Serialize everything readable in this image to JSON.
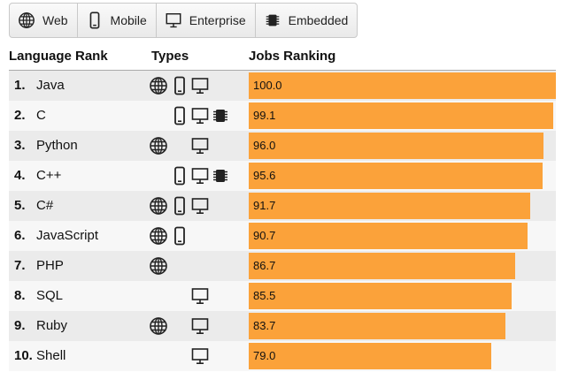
{
  "filters": [
    {
      "icon": "globe-icon",
      "label": "Web"
    },
    {
      "icon": "mobile-icon",
      "label": "Mobile"
    },
    {
      "icon": "monitor-icon",
      "label": "Enterprise"
    },
    {
      "icon": "chip-icon",
      "label": "Embedded"
    }
  ],
  "headers": {
    "language_rank": "Language Rank",
    "types": "Types",
    "jobs_ranking": "Jobs Ranking"
  },
  "colors": {
    "bar": "#fba23a",
    "row_odd": "#ebebeb",
    "row_even": "#f7f7f7"
  },
  "rows": [
    {
      "rank": "1.",
      "name": "Java",
      "web": true,
      "mobile": true,
      "enterprise": true,
      "embedded": false,
      "score": 100.0,
      "score_label": "100.0"
    },
    {
      "rank": "2.",
      "name": "C",
      "web": false,
      "mobile": true,
      "enterprise": true,
      "embedded": true,
      "score": 99.1,
      "score_label": "99.1"
    },
    {
      "rank": "3.",
      "name": "Python",
      "web": true,
      "mobile": false,
      "enterprise": true,
      "embedded": false,
      "score": 96.0,
      "score_label": "96.0"
    },
    {
      "rank": "4.",
      "name": "C++",
      "web": false,
      "mobile": true,
      "enterprise": true,
      "embedded": true,
      "score": 95.6,
      "score_label": "95.6"
    },
    {
      "rank": "5.",
      "name": "C#",
      "web": true,
      "mobile": true,
      "enterprise": true,
      "embedded": false,
      "score": 91.7,
      "score_label": "91.7"
    },
    {
      "rank": "6.",
      "name": "JavaScript",
      "web": true,
      "mobile": true,
      "enterprise": false,
      "embedded": false,
      "score": 90.7,
      "score_label": "90.7"
    },
    {
      "rank": "7.",
      "name": "PHP",
      "web": true,
      "mobile": false,
      "enterprise": false,
      "embedded": false,
      "score": 86.7,
      "score_label": "86.7"
    },
    {
      "rank": "8.",
      "name": "SQL",
      "web": false,
      "mobile": false,
      "enterprise": true,
      "embedded": false,
      "score": 85.5,
      "score_label": "85.5"
    },
    {
      "rank": "9.",
      "name": "Ruby",
      "web": true,
      "mobile": false,
      "enterprise": true,
      "embedded": false,
      "score": 83.7,
      "score_label": "83.7"
    },
    {
      "rank": "10.",
      "name": "Shell",
      "web": false,
      "mobile": false,
      "enterprise": true,
      "embedded": false,
      "score": 79.0,
      "score_label": "79.0"
    }
  ]
}
